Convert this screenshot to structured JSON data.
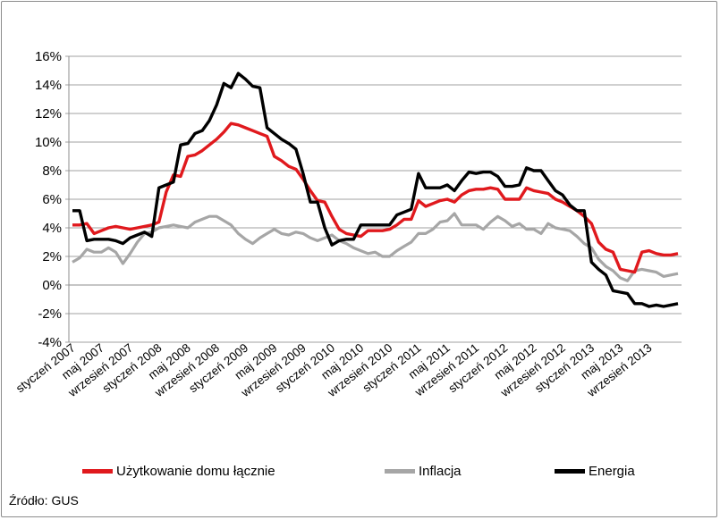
{
  "chart_data": {
    "type": "line",
    "ylim": [
      -4,
      16
    ],
    "yticks": [
      "-4%",
      "-2%",
      "0%",
      "2%",
      "4%",
      "6%",
      "8%",
      "10%",
      "12%",
      "14%",
      "16%"
    ],
    "x_tick_labels": [
      "styczeń 2007",
      "maj 2007",
      "wrzesień 2007",
      "styczeń 2008",
      "maj 2008",
      "wrzesień 2008",
      "styczeń 2009",
      "maj 2009",
      "wrzesień 2009",
      "styczeń 2010",
      "maj 2010",
      "wrzesień 2010",
      "styczeń 2011",
      "maj 2011",
      "wrzesień 2011",
      "styczeń 2012",
      "maj 2012",
      "wrzesień 2012",
      "styczeń 2013",
      "maj 2013",
      "wrzesień 2013"
    ],
    "series": [
      {
        "name": "Użytkowanie domu łącznie",
        "color": "#e0191d",
        "values": [
          4.2,
          4.2,
          4.3,
          3.6,
          3.8,
          4.0,
          4.1,
          4.0,
          3.9,
          4.0,
          4.1,
          4.2,
          4.4,
          6.5,
          7.7,
          7.6,
          9.0,
          9.1,
          9.4,
          9.8,
          10.2,
          10.7,
          11.3,
          11.2,
          11.0,
          10.8,
          10.6,
          10.4,
          9.0,
          8.7,
          8.3,
          8.1,
          7.4,
          6.6,
          5.9,
          5.8,
          4.8,
          3.9,
          3.6,
          3.5,
          3.4,
          3.8,
          3.8,
          3.8,
          3.9,
          4.2,
          4.6,
          4.6,
          5.9,
          5.5,
          5.7,
          5.9,
          6.0,
          5.8,
          6.3,
          6.6,
          6.7,
          6.7,
          6.8,
          6.7,
          6.0,
          6.0,
          6.0,
          6.8,
          6.6,
          6.5,
          6.4,
          6.0,
          5.8,
          5.5,
          5.2,
          4.8,
          4.3,
          3.0,
          2.5,
          2.3,
          1.1,
          1.0,
          0.9,
          2.3,
          2.4,
          2.2,
          2.1,
          2.1,
          2.2
        ]
      },
      {
        "name": "Inflacja",
        "color": "#a6a6a6",
        "values": [
          1.6,
          1.9,
          2.5,
          2.3,
          2.3,
          2.6,
          2.3,
          1.5,
          2.2,
          3.0,
          3.6,
          3.7,
          4.0,
          4.1,
          4.2,
          4.1,
          4.0,
          4.4,
          4.6,
          4.8,
          4.8,
          4.5,
          4.2,
          3.6,
          3.2,
          2.9,
          3.3,
          3.6,
          3.9,
          3.6,
          3.5,
          3.7,
          3.6,
          3.3,
          3.1,
          3.3,
          3.5,
          3.1,
          2.9,
          2.6,
          2.4,
          2.2,
          2.3,
          2.0,
          2.0,
          2.4,
          2.7,
          3.0,
          3.6,
          3.6,
          3.9,
          4.4,
          4.5,
          5.0,
          4.2,
          4.2,
          4.2,
          3.9,
          4.4,
          4.8,
          4.5,
          4.1,
          4.3,
          3.9,
          3.9,
          3.6,
          4.3,
          4.0,
          3.9,
          3.8,
          3.4,
          2.9,
          2.6,
          1.8,
          1.3,
          1.0,
          0.5,
          0.3,
          1.0,
          1.1,
          1.0,
          0.9,
          0.6,
          0.7,
          0.8
        ]
      },
      {
        "name": "Energia",
        "color": "#000000",
        "values": [
          5.2,
          5.2,
          3.1,
          3.2,
          3.2,
          3.2,
          3.1,
          2.9,
          3.3,
          3.5,
          3.7,
          3.4,
          6.8,
          7.0,
          7.2,
          9.8,
          9.9,
          10.6,
          10.8,
          11.5,
          12.6,
          14.1,
          13.8,
          14.8,
          14.4,
          13.9,
          13.8,
          11.0,
          10.6,
          10.2,
          9.9,
          9.5,
          7.8,
          5.8,
          5.8,
          4.0,
          2.8,
          3.1,
          3.2,
          3.2,
          4.2,
          4.2,
          4.2,
          4.2,
          4.2,
          4.9,
          5.1,
          5.3,
          7.8,
          6.8,
          6.8,
          6.8,
          7.0,
          6.6,
          7.3,
          7.9,
          7.8,
          7.9,
          7.9,
          7.6,
          6.9,
          6.9,
          7.0,
          8.2,
          8.0,
          8.0,
          7.3,
          6.6,
          6.3,
          5.6,
          5.2,
          5.2,
          1.6,
          1.1,
          0.7,
          -0.4,
          -0.5,
          -0.6,
          -1.3,
          -1.3,
          -1.5,
          -1.4,
          -1.5,
          -1.4,
          -1.3
        ]
      }
    ]
  },
  "legend": {
    "items": [
      {
        "label": "Użytkowanie domu łącznie",
        "color": "#e0191d"
      },
      {
        "label": "Inflacja",
        "color": "#a6a6a6"
      },
      {
        "label": "Energia",
        "color": "#000000"
      }
    ]
  },
  "source": "Źródło: GUS"
}
